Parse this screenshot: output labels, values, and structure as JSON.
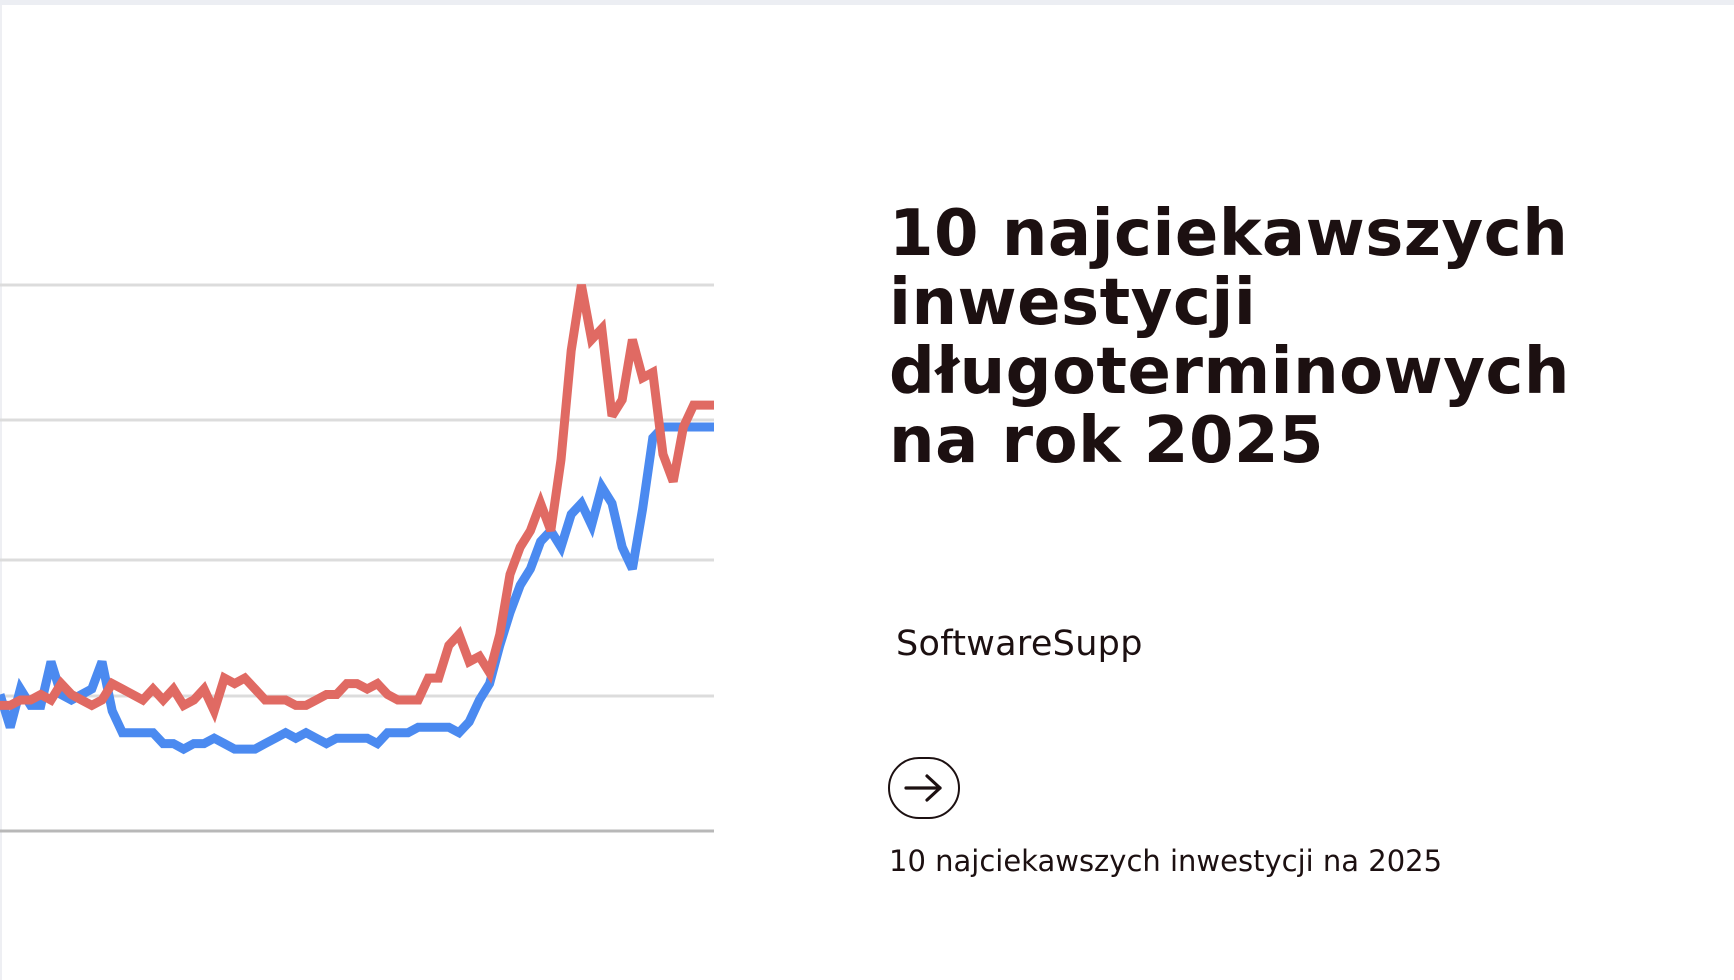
{
  "hero": {
    "title_lines": [
      "10 najciekawszych",
      "inwestycji",
      "długoterminowych",
      "na rok 2025"
    ],
    "brand": "SoftwareSupp",
    "link_text": "10 najciekawszych inwestycji na 2025",
    "arrow_icon": "arrow-right-icon"
  },
  "colors": {
    "title": "#1c1011",
    "series_red": "#e06a63",
    "series_blue": "#4b8af0",
    "gridline": "#dcdcdc",
    "baseline": "#b8b8b8",
    "top_strip": "#eceef3"
  },
  "chart_data": {
    "type": "line",
    "title": "",
    "xlabel": "",
    "ylabel": "",
    "ylim": [
      0,
      100
    ],
    "grid": true,
    "legend": "none",
    "x": [
      0,
      1,
      2,
      3,
      4,
      5,
      6,
      7,
      8,
      9,
      10,
      11,
      12,
      13,
      14,
      15,
      16,
      17,
      18,
      19,
      20,
      21,
      22,
      23,
      24,
      25,
      26,
      27,
      28,
      29,
      30,
      31,
      32,
      33,
      34,
      35,
      36,
      37,
      38,
      39,
      40,
      41,
      42,
      43,
      44,
      45,
      46,
      47,
      48,
      49,
      50,
      51,
      52,
      53,
      54,
      55,
      56,
      57,
      58,
      59,
      60,
      61,
      62,
      63,
      64,
      65,
      66,
      67,
      68,
      69,
      70
    ],
    "series": [
      {
        "color": "#e06a63",
        "values": [
          23,
          23,
          24,
          24,
          25,
          24,
          27,
          25,
          24,
          23,
          24,
          27,
          26,
          25,
          24,
          26,
          24,
          26,
          23,
          24,
          26,
          22,
          28,
          27,
          28,
          26,
          24,
          24,
          24,
          23,
          23,
          24,
          25,
          25,
          27,
          27,
          26,
          27,
          25,
          24,
          24,
          24,
          28,
          28,
          34,
          36,
          31,
          32,
          29,
          36,
          47,
          52,
          55,
          60,
          55,
          68,
          88,
          100,
          90,
          92,
          76,
          79,
          90,
          83,
          84,
          69,
          64,
          74,
          78,
          78,
          78
        ]
      },
      {
        "color": "#4b8af0",
        "values": [
          25,
          19,
          26,
          23,
          23,
          31,
          25,
          24,
          25,
          26,
          31,
          22,
          18,
          18,
          18,
          18,
          16,
          16,
          15,
          16,
          16,
          17,
          16,
          15,
          15,
          15,
          16,
          17,
          18,
          17,
          18,
          17,
          16,
          17,
          17,
          17,
          17,
          16,
          18,
          18,
          18,
          19,
          19,
          19,
          19,
          18,
          20,
          24,
          27,
          34,
          40,
          45,
          48,
          53,
          55,
          52,
          58,
          60,
          56,
          63,
          60,
          52,
          48,
          59,
          72,
          74,
          74,
          74,
          74,
          74,
          74
        ]
      }
    ]
  }
}
